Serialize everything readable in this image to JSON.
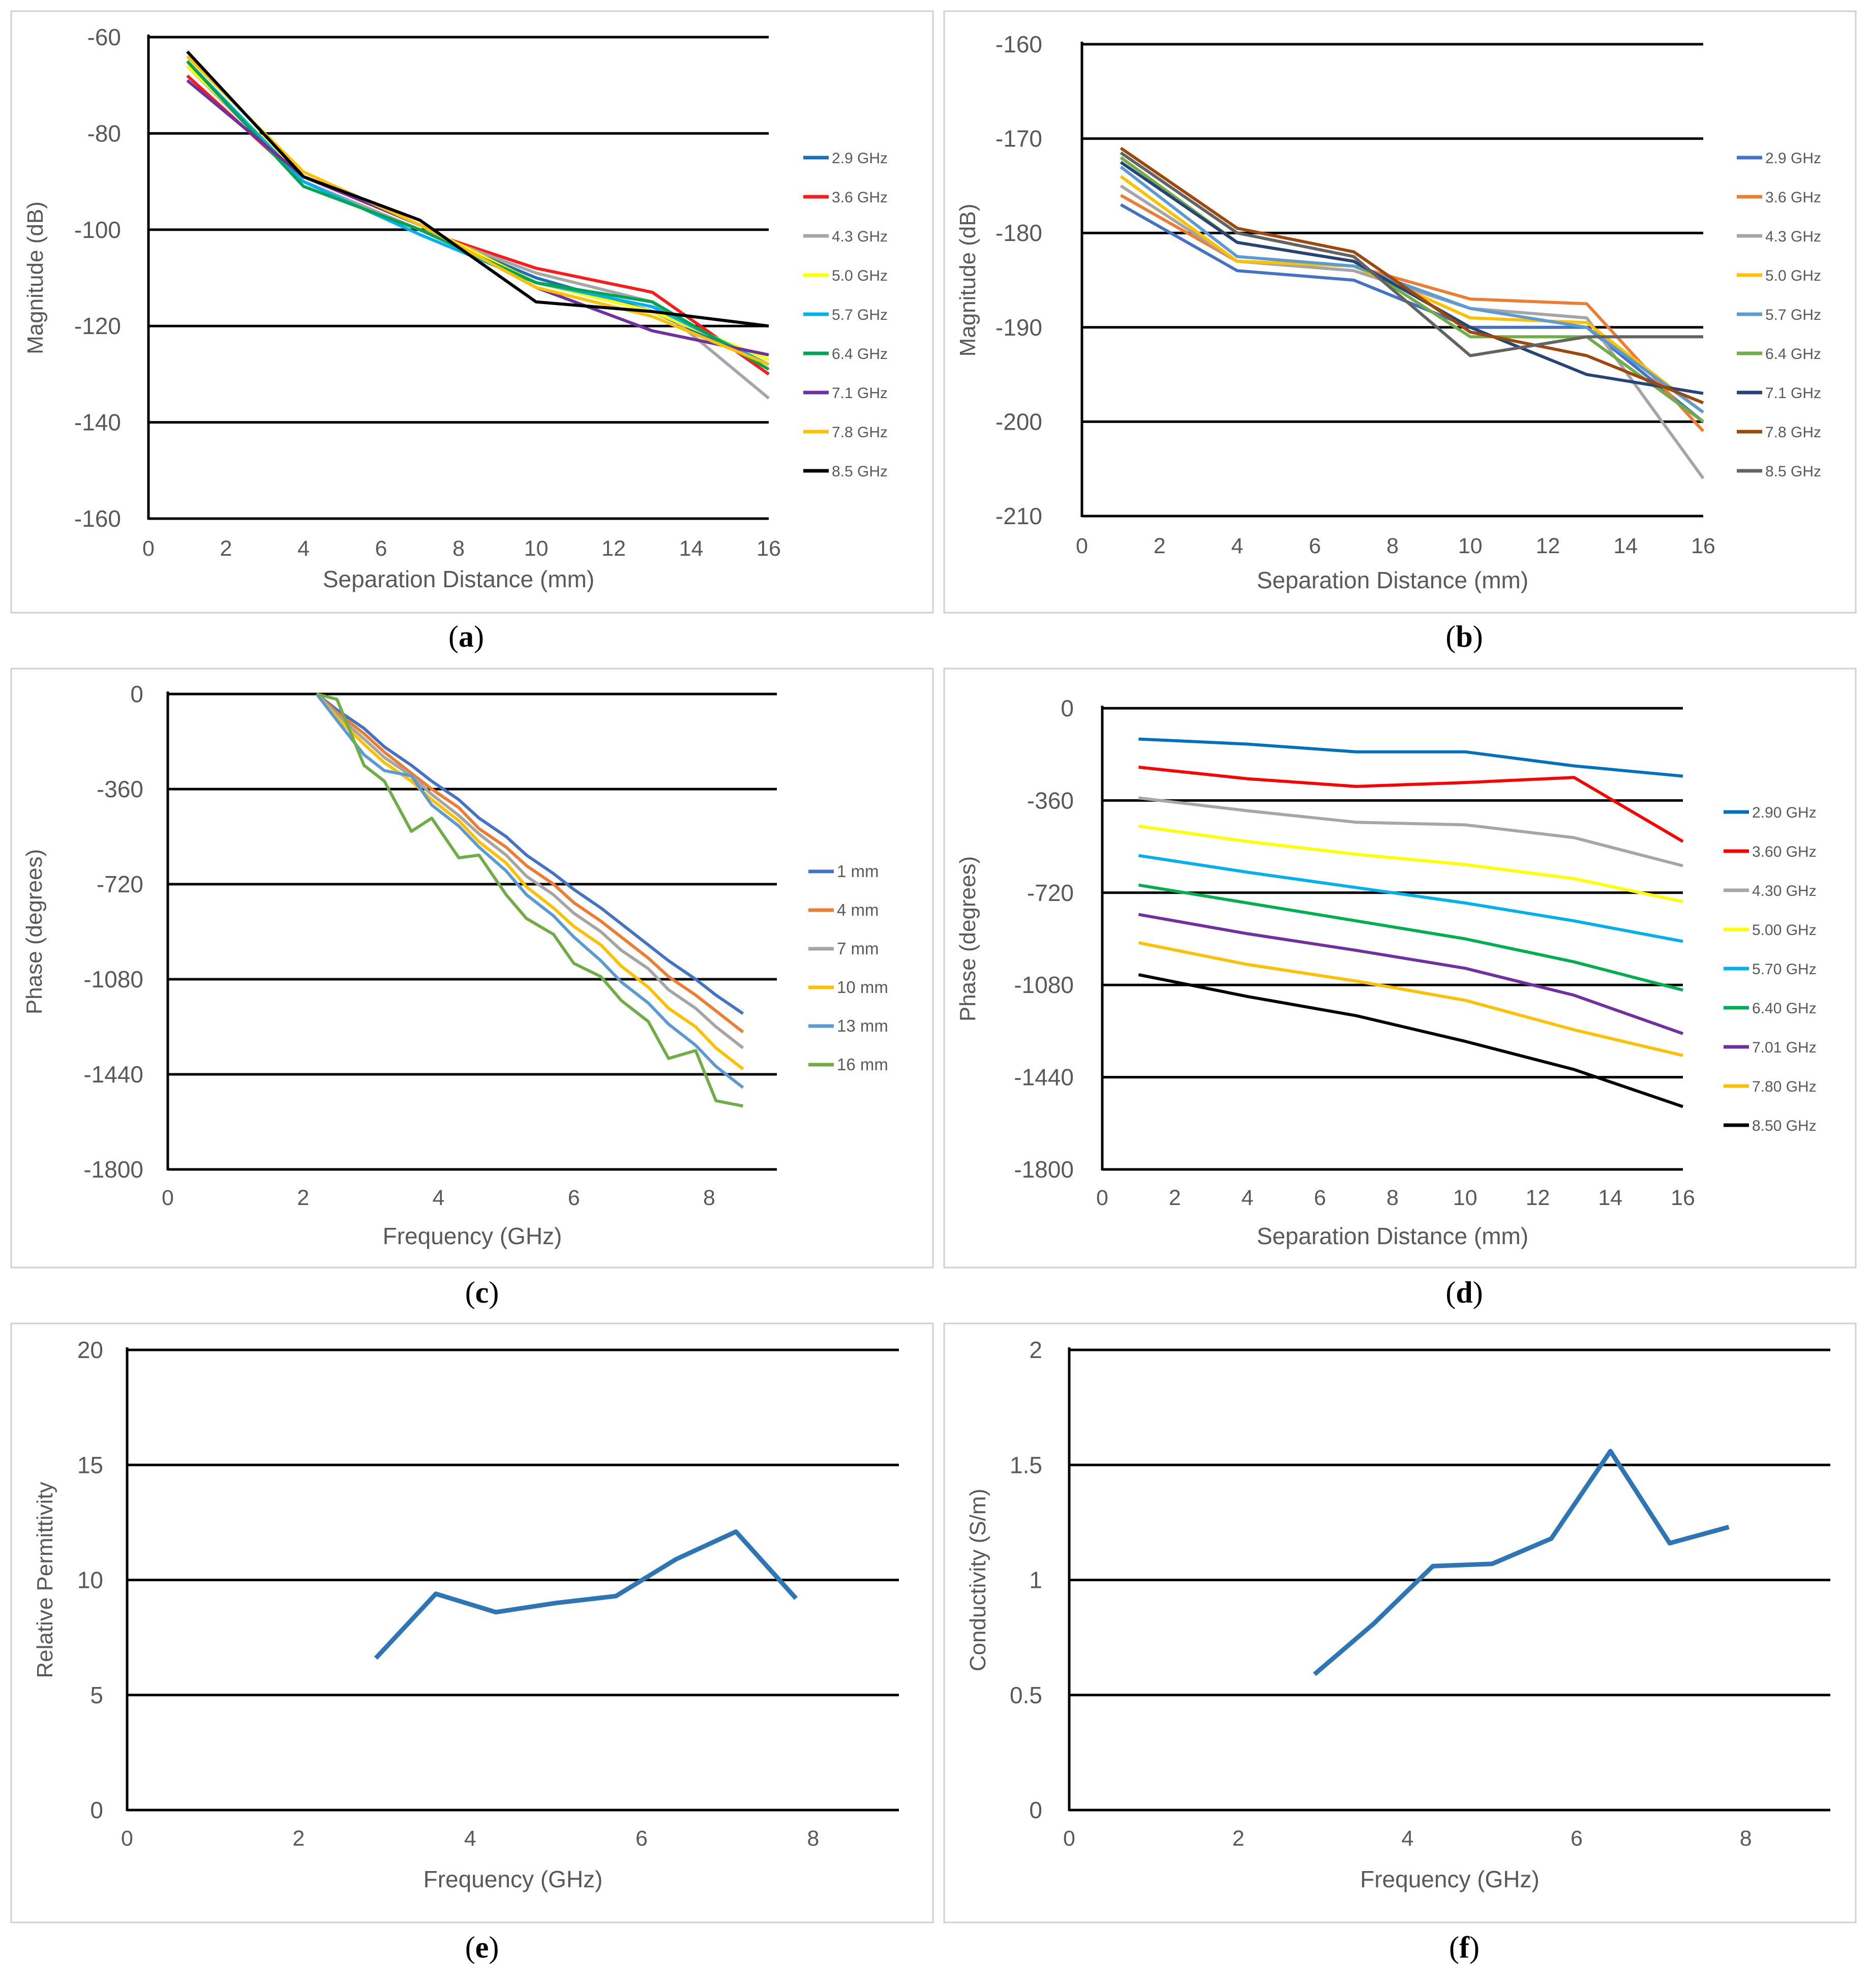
{
  "panels": [
    {
      "caption": {
        "open": "(",
        "letter": "a",
        "close": ")"
      },
      "chart_data": {
        "type": "line",
        "xlabel": "Separation Distance (mm)",
        "ylabel": "Magnitude (dB)",
        "xlim": [
          0,
          16
        ],
        "ylim": [
          -160,
          -60
        ],
        "xticks": [
          0,
          2,
          4,
          6,
          8,
          10,
          12,
          14,
          16
        ],
        "yticks": [
          -60,
          -80,
          -100,
          -120,
          -140,
          -160
        ],
        "grid": "horizontal",
        "legend_position": "right",
        "x": [
          1,
          4,
          7,
          10,
          13,
          16
        ],
        "series": [
          {
            "name": "2.9 GHz",
            "color": "#1f6fb0",
            "values": [
              -66,
              -90,
              -100,
              -110,
              -117,
              -128
            ]
          },
          {
            "name": "3.6 GHz",
            "color": "#ff1a1a",
            "values": [
              -68,
              -90,
              -100,
              -108,
              -113,
              -130
            ]
          },
          {
            "name": "4.3 GHz",
            "color": "#a6a6a6",
            "values": [
              -66,
              -90,
              -100,
              -109,
              -115,
              -135
            ]
          },
          {
            "name": "5.0 GHz",
            "color": "#ffff00",
            "values": [
              -66,
              -89,
              -99,
              -111,
              -117,
              -127
            ]
          },
          {
            "name": "5.7 GHz",
            "color": "#00b0f0",
            "values": [
              -65,
              -90,
              -101,
              -111,
              -116,
              -128
            ]
          },
          {
            "name": "6.4 GHz",
            "color": "#00a651",
            "values": [
              -65,
              -91,
              -100,
              -111,
              -115,
              -129
            ]
          },
          {
            "name": "7.1 GHz",
            "color": "#7030a0",
            "values": [
              -69,
              -89,
              -99,
              -112,
              -121,
              -126
            ]
          },
          {
            "name": "7.8 GHz",
            "color": "#ffc000",
            "values": [
              -64,
              -88,
              -99,
              -112,
              -118,
              -128
            ]
          },
          {
            "name": "8.5 GHz",
            "color": "#000000",
            "values": [
              -63,
              -89,
              -98,
              -115,
              -117,
              -120
            ]
          }
        ]
      }
    },
    {
      "caption": {
        "open": "(",
        "letter": "b",
        "close": ")"
      },
      "chart_data": {
        "type": "line",
        "xlabel": "Separation Distance (mm)",
        "ylabel": "Magnitude (dB)",
        "xlim": [
          0,
          16
        ],
        "ylim": [
          -210,
          -160
        ],
        "xticks": [
          0,
          2,
          4,
          6,
          8,
          10,
          12,
          14,
          16
        ],
        "yticks": [
          -160,
          -170,
          -180,
          -190,
          -200,
          -210
        ],
        "grid": "horizontal",
        "legend_position": "right",
        "x": [
          1,
          4,
          7,
          10,
          13,
          16
        ],
        "series": [
          {
            "name": "2.9 GHz",
            "color": "#4472c4",
            "values": [
              -177,
              -184,
              -185,
              -190,
              -190,
              -200
            ]
          },
          {
            "name": "3.6 GHz",
            "color": "#ed7d31",
            "values": [
              -176,
              -183,
              -183.5,
              -187,
              -187.5,
              -201
            ]
          },
          {
            "name": "4.3 GHz",
            "color": "#a5a5a5",
            "values": [
              -175,
              -183,
              -184,
              -188,
              -189,
              -206
            ]
          },
          {
            "name": "5.0 GHz",
            "color": "#ffc000",
            "values": [
              -174,
              -183,
              -183.5,
              -189,
              -189.5,
              -199
            ]
          },
          {
            "name": "5.7 GHz",
            "color": "#5b9bd5",
            "values": [
              -173,
              -182.5,
              -183.5,
              -188,
              -190,
              -199
            ]
          },
          {
            "name": "6.4 GHz",
            "color": "#70ad47",
            "values": [
              -172,
              -181,
              -183,
              -191,
              -191,
              -200
            ]
          },
          {
            "name": "7.1 GHz",
            "color": "#264478",
            "values": [
              -172.5,
              -181,
              -183,
              -190,
              -195,
              -197
            ]
          },
          {
            "name": "7.8 GHz",
            "color": "#9e480e",
            "values": [
              -171,
              -179.5,
              -182,
              -190.5,
              -193,
              -198
            ]
          },
          {
            "name": "8.5 GHz",
            "color": "#636363",
            "values": [
              -171.5,
              -180,
              -182.5,
              -193,
              -191,
              -191
            ]
          }
        ]
      }
    },
    {
      "caption": {
        "open": "(",
        "letter": "c",
        "close": ")"
      },
      "chart_data": {
        "type": "line",
        "xlabel": "Frequency (GHz)",
        "ylabel": "Phase (degrees)",
        "xlim": [
          0,
          9
        ],
        "ylim": [
          -1800,
          0
        ],
        "xticks": [
          0,
          2,
          4,
          6,
          8
        ],
        "yticks": [
          0,
          -360,
          -720,
          -1080,
          -1440,
          -1800
        ],
        "grid": "horizontal",
        "legend_position": "right",
        "x": [
          2.2,
          2.5,
          2.9,
          3.2,
          3.6,
          3.9,
          4.3,
          4.6,
          5.0,
          5.3,
          5.7,
          6.0,
          6.4,
          6.7,
          7.1,
          7.4,
          7.8,
          8.1,
          8.5
        ],
        "series": [
          {
            "name": "1 mm",
            "color": "#4472c4",
            "values": [
              0,
              -60,
              -130,
              -200,
              -270,
              -330,
              -400,
              -470,
              -540,
              -610,
              -680,
              -740,
              -810,
              -870,
              -950,
              -1010,
              -1080,
              -1140,
              -1210
            ]
          },
          {
            "name": "4 mm",
            "color": "#ed7d31",
            "values": [
              0,
              -70,
              -150,
              -220,
              -300,
              -360,
              -430,
              -510,
              -580,
              -650,
              -720,
              -790,
              -860,
              -920,
              -1000,
              -1070,
              -1140,
              -1200,
              -1280
            ]
          },
          {
            "name": "7 mm",
            "color": "#a5a5a5",
            "values": [
              0,
              -80,
              -170,
              -240,
              -310,
              -380,
              -460,
              -530,
              -610,
              -690,
              -760,
              -830,
              -900,
              -970,
              -1040,
              -1120,
              -1190,
              -1260,
              -1340
            ]
          },
          {
            "name": "10 mm",
            "color": "#ffc000",
            "values": [
              0,
              -90,
              -190,
              -260,
              -330,
              -400,
              -480,
              -560,
              -640,
              -730,
              -810,
              -880,
              -950,
              -1030,
              -1110,
              -1190,
              -1260,
              -1340,
              -1420
            ]
          },
          {
            "name": "13 mm",
            "color": "#5b9bd5",
            "values": [
              0,
              -100,
              -230,
              -290,
              -310,
              -420,
              -500,
              -580,
              -670,
              -760,
              -840,
              -920,
              -1010,
              -1090,
              -1170,
              -1250,
              -1330,
              -1410,
              -1490
            ]
          },
          {
            "name": "16 mm",
            "color": "#70ad47",
            "values": [
              0,
              -20,
              -270,
              -330,
              -520,
              -470,
              -620,
              -610,
              -760,
              -850,
              -910,
              -1020,
              -1070,
              -1160,
              -1240,
              -1380,
              -1350,
              -1540,
              -1560
            ]
          }
        ]
      }
    },
    {
      "caption": {
        "open": "(",
        "letter": "d",
        "close": ")"
      },
      "chart_data": {
        "type": "line",
        "xlabel": "Separation Distance (mm)",
        "ylabel": "Phase (degrees)",
        "xlim": [
          0,
          16
        ],
        "ylim": [
          -1800,
          0
        ],
        "xticks": [
          0,
          2,
          4,
          6,
          8,
          10,
          12,
          14,
          16
        ],
        "yticks": [
          0,
          -360,
          -720,
          -1080,
          -1440,
          -1800
        ],
        "grid": "horizontal",
        "legend_position": "right",
        "x": [
          1,
          4,
          7,
          10,
          13,
          16
        ],
        "series": [
          {
            "name": "2.90 GHz",
            "color": "#0070c0",
            "values": [
              -120,
              -140,
              -170,
              -170,
              -225,
              -265
            ]
          },
          {
            "name": "3.60 GHz",
            "color": "#ff0000",
            "values": [
              -230,
              -275,
              -305,
              -290,
              -270,
              -520
            ]
          },
          {
            "name": "4.30 GHz",
            "color": "#a6a6a6",
            "values": [
              -350,
              -400,
              -445,
              -455,
              -505,
              -615
            ]
          },
          {
            "name": "5.00 GHz",
            "color": "#ffff00",
            "values": [
              -460,
              -520,
              -570,
              -610,
              -665,
              -755
            ]
          },
          {
            "name": "5.70 GHz",
            "color": "#00b0f0",
            "values": [
              -575,
              -640,
              -700,
              -760,
              -830,
              -910
            ]
          },
          {
            "name": "6.40 GHz",
            "color": "#00b050",
            "values": [
              -690,
              -760,
              -830,
              -900,
              -990,
              -1100
            ]
          },
          {
            "name": "7.01 GHz",
            "color": "#7030a0",
            "values": [
              -805,
              -880,
              -945,
              -1015,
              -1120,
              -1270
            ]
          },
          {
            "name": "7.80 GHz",
            "color": "#ffc000",
            "values": [
              -915,
              -1000,
              -1065,
              -1140,
              -1255,
              -1355
            ]
          },
          {
            "name": "8.50 GHz",
            "color": "#000000",
            "values": [
              -1040,
              -1125,
              -1200,
              -1300,
              -1410,
              -1555
            ]
          }
        ]
      }
    },
    {
      "caption": {
        "open": "(",
        "letter": "e",
        "close": ")"
      },
      "chart_data": {
        "type": "line",
        "xlabel": "Frequency (GHz)",
        "ylabel": "Relative Permittivity",
        "xlim": [
          0,
          9
        ],
        "ylim": [
          0,
          20
        ],
        "xticks": [
          0,
          2,
          4,
          6,
          8
        ],
        "yticks": [
          20,
          15,
          10,
          5,
          0
        ],
        "grid": "horizontal",
        "legend_position": "none",
        "x": [
          2.9,
          3.6,
          4.3,
          5.0,
          5.7,
          6.4,
          7.1,
          7.8
        ],
        "series": [
          {
            "name": "Relative Permittivity",
            "color": "#2e75b6",
            "values": [
              6.6,
              9.4,
              8.6,
              9.0,
              9.3,
              10.9,
              12.1,
              9.2
            ]
          }
        ]
      }
    },
    {
      "caption": {
        "open": "(",
        "letter": "f",
        "close": ")"
      },
      "chart_data": {
        "type": "line",
        "xlabel": "Frequency (GHz)",
        "ylabel": "Conductivity (S/m)",
        "xlim": [
          0,
          9
        ],
        "ylim": [
          0,
          2
        ],
        "xticks": [
          0,
          2,
          4,
          6,
          8
        ],
        "yticks": [
          2,
          1.5,
          1,
          0.5,
          0
        ],
        "grid": "horizontal",
        "legend_position": "none",
        "x": [
          2.9,
          3.6,
          4.3,
          5.0,
          5.7,
          6.4,
          7.1,
          7.8
        ],
        "series": [
          {
            "name": "Conductivity",
            "color": "#2e75b6",
            "values": [
              0.59,
              0.81,
              1.06,
              1.07,
              1.18,
              1.56,
              1.16,
              1.23
            ]
          }
        ]
      }
    }
  ]
}
